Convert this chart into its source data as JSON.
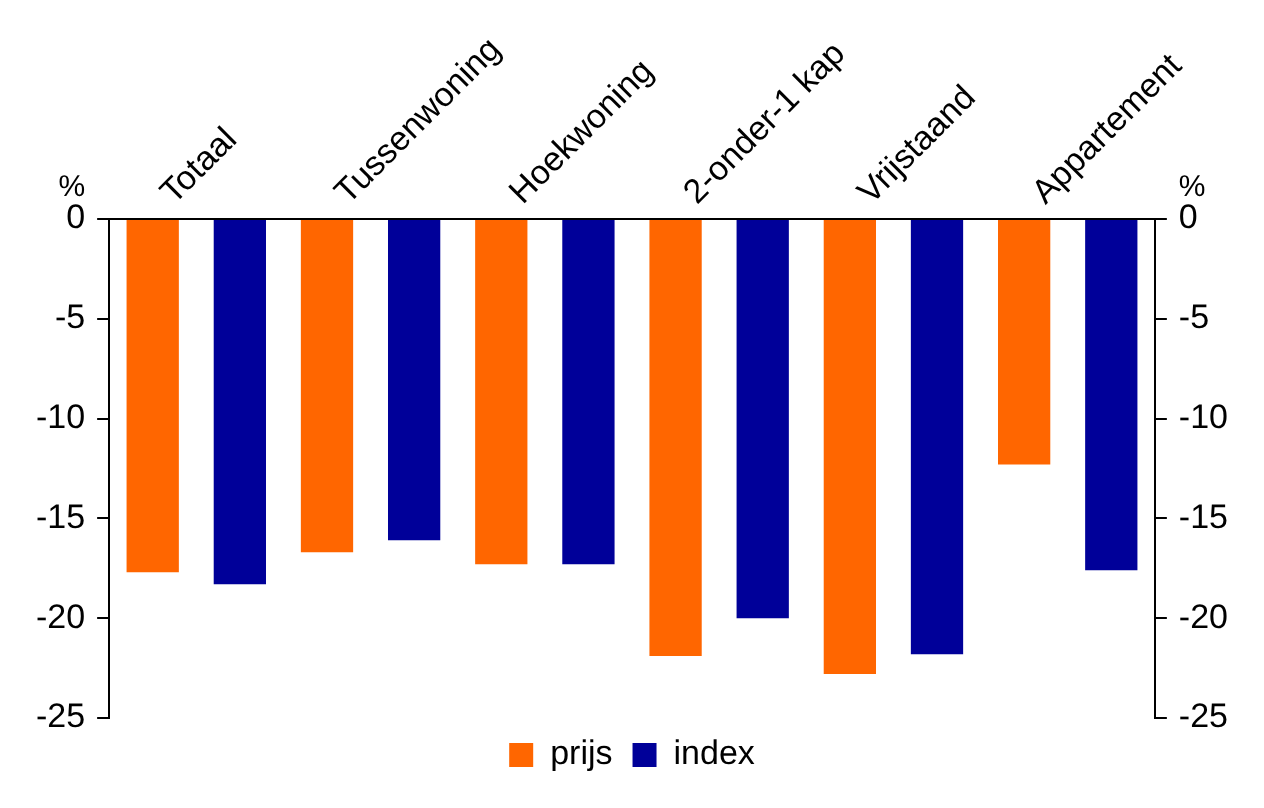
{
  "chart_data": {
    "type": "bar",
    "categories": [
      "Totaal",
      "Tussenwoning",
      "Hoekwoning",
      "2-onder-1 kap",
      "Vrijstaand",
      "Appartement"
    ],
    "series": [
      {
        "name": "prijs",
        "color": "#ff6600",
        "values": [
          -17.7,
          -16.7,
          -17.3,
          -21.9,
          -22.8,
          -12.3
        ]
      },
      {
        "name": "index",
        "color": "#000099",
        "values": [
          -18.3,
          -16.1,
          -17.3,
          -20.0,
          -21.8,
          -17.6
        ]
      }
    ],
    "ylabel": "%",
    "y2label": "%",
    "ylim": [
      -25,
      0
    ],
    "yticks": [
      0,
      -5,
      -10,
      -15,
      -20,
      -25
    ],
    "y2lim": [
      -25,
      0
    ],
    "y2ticks": [
      0,
      -5,
      -10,
      -15,
      -20,
      -25
    ],
    "grid": false,
    "legend": "bottom"
  }
}
